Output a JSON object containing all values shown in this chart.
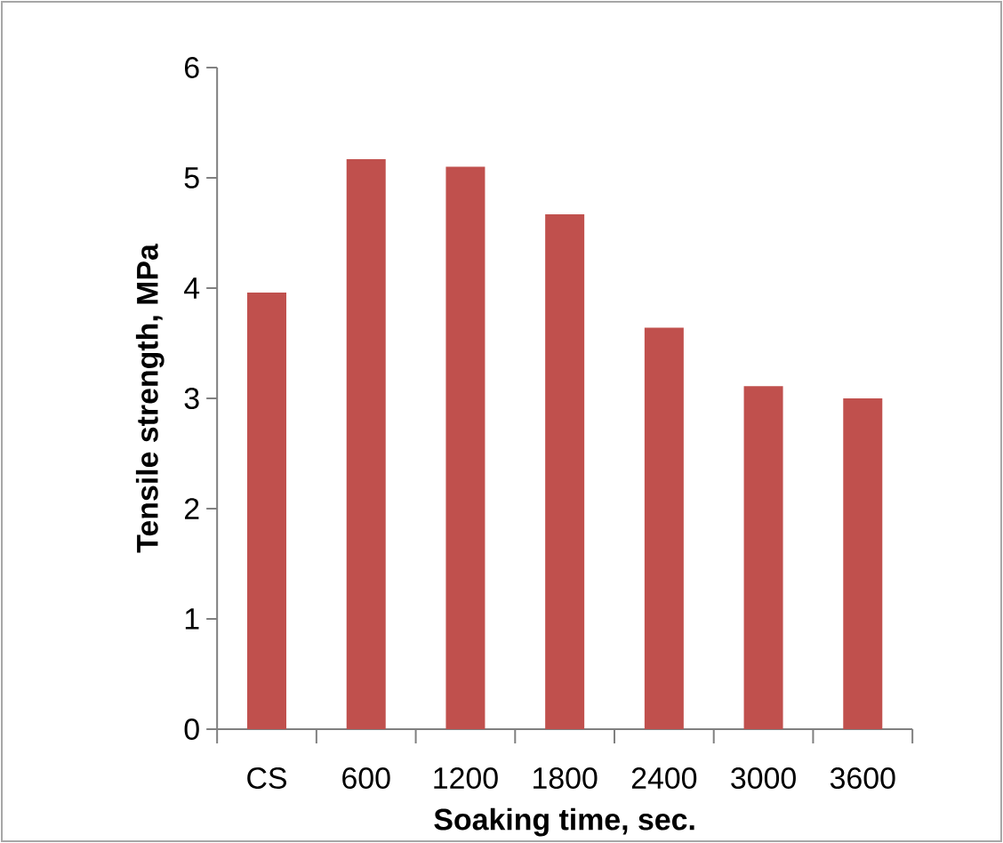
{
  "chart_data": {
    "type": "bar",
    "xlabel": "Soaking time, sec.",
    "ylabel": "Tensile strength, MPa",
    "categories": [
      "CS",
      "600",
      "1200",
      "1800",
      "2400",
      "3000",
      "3600"
    ],
    "values": [
      3.96,
      5.17,
      5.1,
      4.67,
      3.64,
      3.11,
      3.0
    ],
    "color": "#c0504d",
    "ylim": [
      0,
      6
    ],
    "yticks": [
      0,
      1,
      2,
      3,
      4,
      5,
      6
    ],
    "grid": false
  }
}
